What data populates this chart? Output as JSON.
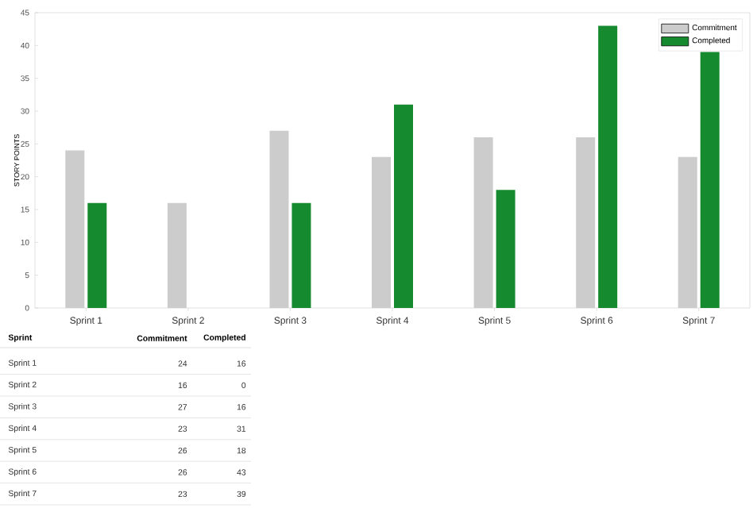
{
  "chart_data": [
    {
      "type": "bar",
      "ylabel": "STORY POINTS",
      "categories": [
        "Sprint 1",
        "Sprint 2",
        "Sprint 3",
        "Sprint 4",
        "Sprint 5",
        "Sprint 6",
        "Sprint 7"
      ],
      "series": [
        {
          "name": "Commitment",
          "color": "#cccccc",
          "values": [
            24,
            16,
            27,
            23,
            26,
            26,
            23
          ]
        },
        {
          "name": "Completed",
          "color": "#168a2e",
          "values": [
            16,
            0,
            16,
            31,
            18,
            43,
            39
          ]
        }
      ],
      "ylim": [
        0,
        45
      ],
      "yticks": [
        0,
        5,
        10,
        15,
        20,
        25,
        30,
        35,
        40,
        45
      ],
      "legend": "top right",
      "grid": false
    },
    {
      "type": "other",
      "categories": [
        "Sprint 1",
        "Sprint 2",
        "Sprint 3",
        "Sprint 4",
        "Sprint 5",
        "Sprint 6",
        "Sprint 7"
      ],
      "series": [
        {
          "name": "Commitment",
          "values": [
            24,
            16,
            27,
            23,
            26,
            26,
            23
          ],
          "value_labels": [
            "24",
            "16",
            "27",
            "23",
            "26",
            "26",
            "23"
          ]
        },
        {
          "name": "Completed",
          "values": [
            16,
            0,
            16,
            31,
            18,
            43,
            39
          ],
          "value_labels": [
            "16",
            "0",
            "16",
            "31",
            "18",
            "43",
            "39"
          ]
        }
      ],
      "annotations": [
        "Sprint"
      ]
    }
  ]
}
